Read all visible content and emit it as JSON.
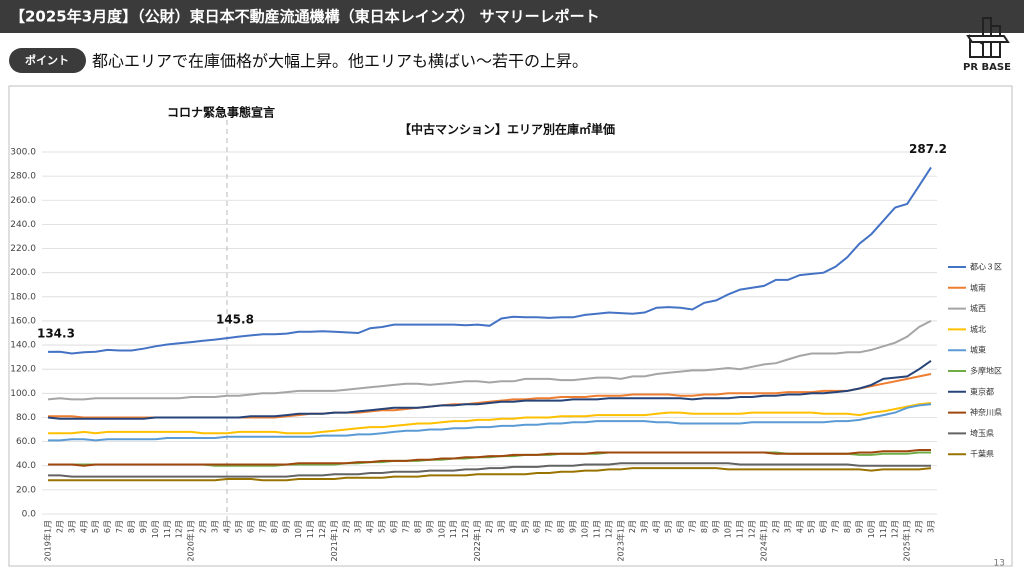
{
  "header": {
    "title": "【2025年3月度】（公財）東日本不動産流通機構（東日本レインズ） サマリーレポート",
    "logo": "PR BASE"
  },
  "point": {
    "badge": "ポイント",
    "text": "都心エリアで在庫価格が大幅上昇。他エリアも横ばい～若干の上昇。"
  },
  "page_number": "13",
  "chart_data": {
    "type": "line",
    "title": "【中古マンション】エリア別在庫㎡単価",
    "event": {
      "label": "コロナ緊急事態宣言",
      "x_index": 15
    },
    "labeled_points": [
      0,
      15,
      74
    ],
    "categories": [
      "2019年1月",
      "2月",
      "3月",
      "4月",
      "5月",
      "6月",
      "7月",
      "8月",
      "9月",
      "10月",
      "11月",
      "12月",
      "2020年1月",
      "2月",
      "3月",
      "4月",
      "5月",
      "6月",
      "7月",
      "8月",
      "9月",
      "10月",
      "11月",
      "12月",
      "2021年1月",
      "2月",
      "3月",
      "4月",
      "5月",
      "6月",
      "7月",
      "8月",
      "9月",
      "10月",
      "11月",
      "12月",
      "2022年1月",
      "2月",
      "3月",
      "4月",
      "5月",
      "6月",
      "7月",
      "8月",
      "9月",
      "10月",
      "11月",
      "12月",
      "2023年1月",
      "2月",
      "3月",
      "4月",
      "5月",
      "6月",
      "7月",
      "8月",
      "9月",
      "10月",
      "11月",
      "12月",
      "2024年1月",
      "2月",
      "3月",
      "4月",
      "5月",
      "6月",
      "7月",
      "8月",
      "9月",
      "10月",
      "11月",
      "12月",
      "2025年1月",
      "2月",
      "3月"
    ],
    "ylim": [
      0,
      300
    ],
    "yticks": [
      {
        "value": 0,
        "label": "0.0"
      },
      {
        "value": 20,
        "label": "20.0"
      },
      {
        "value": 40,
        "label": "40.0"
      },
      {
        "value": 60,
        "label": "60.0"
      },
      {
        "value": 80,
        "label": "80.0"
      },
      {
        "value": 100,
        "label": "100.0"
      },
      {
        "value": 120,
        "label": "120.0"
      },
      {
        "value": 140,
        "label": "140.0"
      },
      {
        "value": 160,
        "label": "160.0"
      },
      {
        "value": 180,
        "label": "180.0"
      },
      {
        "value": 200,
        "label": "200.0"
      },
      {
        "value": 220,
        "label": "220.0"
      },
      {
        "value": 240,
        "label": "240.0"
      },
      {
        "value": 260,
        "label": "260.0"
      },
      {
        "value": 280,
        "label": "280.0"
      },
      {
        "value": 300,
        "label": "300.0"
      }
    ],
    "grid": true,
    "legend": "right",
    "series": [
      {
        "name": "都心３区",
        "color": "#4472c4",
        "values": [
          134.3,
          134.5,
          133,
          134,
          134.5,
          136,
          135.5,
          135.5,
          137,
          139,
          140.5,
          141.5,
          142.5,
          143.5,
          144.5,
          145.8,
          147,
          148,
          149,
          149,
          149.5,
          151,
          151,
          151.5,
          151,
          150.5,
          150,
          154,
          155,
          157,
          157,
          157,
          157,
          157,
          157,
          156.5,
          157,
          156,
          162,
          163.5,
          163,
          163,
          162.5,
          163,
          163,
          165,
          166,
          167,
          166.5,
          166,
          167,
          171,
          171.5,
          171,
          169.5,
          175,
          177,
          182,
          186,
          187.5,
          189,
          194,
          194,
          198,
          199,
          200,
          205,
          213,
          224,
          232,
          243,
          254,
          257,
          272,
          287.2
        ]
      },
      {
        "name": "城南",
        "color": "#ed7d31",
        "values": [
          81,
          81,
          81,
          80,
          80,
          80,
          80,
          80,
          80,
          80,
          80,
          80,
          80,
          80,
          80,
          80,
          80,
          80,
          80,
          80,
          81,
          82,
          83,
          83,
          84,
          84,
          84,
          85,
          86,
          86,
          87,
          88,
          89,
          90,
          91,
          91,
          92,
          93,
          94,
          95,
          95,
          96,
          96,
          97,
          97,
          97,
          98,
          98,
          98,
          99,
          99,
          99,
          99,
          98,
          98,
          99,
          99,
          100,
          100,
          100,
          100,
          100,
          101,
          101,
          101,
          102,
          102,
          102,
          104,
          106,
          108,
          110,
          112,
          114,
          116
        ]
      },
      {
        "name": "城西",
        "color": "#a5a5a5",
        "values": [
          95,
          96,
          95,
          95,
          96,
          96,
          96,
          96,
          96,
          96,
          96,
          96,
          97,
          97,
          97,
          98,
          98,
          99,
          100,
          100,
          101,
          102,
          102,
          102,
          102,
          103,
          104,
          105,
          106,
          107,
          108,
          108,
          107,
          108,
          109,
          110,
          110,
          109,
          110,
          110,
          112,
          112,
          112,
          111,
          111,
          112,
          113,
          113,
          112,
          114,
          114,
          116,
          117,
          118,
          119,
          119,
          120,
          121,
          120,
          122,
          124,
          125,
          128,
          131,
          133,
          133,
          133,
          134,
          134,
          136,
          139,
          142,
          147,
          155,
          160
        ]
      },
      {
        "name": "城北",
        "color": "#ffc000",
        "values": [
          67,
          67,
          67,
          68,
          67,
          68,
          68,
          68,
          68,
          68,
          68,
          68,
          68,
          67,
          67,
          67,
          68,
          68,
          68,
          68,
          67,
          67,
          67,
          68,
          69,
          70,
          71,
          72,
          72,
          73,
          74,
          75,
          75,
          76,
          77,
          77,
          78,
          78,
          79,
          79,
          80,
          80,
          80,
          81,
          81,
          81,
          82,
          82,
          82,
          82,
          82,
          83,
          84,
          84,
          83,
          83,
          83,
          83,
          83,
          84,
          84,
          84,
          84,
          84,
          84,
          83,
          83,
          83,
          82,
          84,
          85,
          87,
          89,
          91,
          92
        ]
      },
      {
        "name": "城東",
        "color": "#5b9bd5",
        "values": [
          61,
          61,
          62,
          62,
          61,
          62,
          62,
          62,
          62,
          62,
          63,
          63,
          63,
          63,
          63,
          64,
          64,
          64,
          64,
          64,
          64,
          64,
          64,
          65,
          65,
          65,
          66,
          66,
          67,
          68,
          69,
          69,
          70,
          70,
          71,
          71,
          72,
          72,
          73,
          73,
          74,
          74,
          75,
          75,
          76,
          76,
          77,
          77,
          77,
          77,
          77,
          76,
          76,
          75,
          75,
          75,
          75,
          75,
          75,
          76,
          76,
          76,
          76,
          76,
          76,
          76,
          77,
          77,
          78,
          80,
          82,
          84,
          88,
          90,
          91
        ]
      },
      {
        "name": "多摩地区",
        "color": "#70ad47",
        "values": [
          41,
          41,
          41,
          41,
          41,
          41,
          41,
          41,
          41,
          41,
          41,
          41,
          41,
          41,
          40,
          40,
          40,
          40,
          40,
          40,
          41,
          41,
          41,
          41,
          41,
          42,
          42,
          43,
          43,
          44,
          44,
          44,
          45,
          45,
          46,
          46,
          47,
          47,
          48,
          48,
          49,
          49,
          49,
          50,
          50,
          50,
          50,
          51,
          51,
          51,
          51,
          51,
          51,
          51,
          51,
          51,
          51,
          51,
          51,
          51,
          51,
          51,
          50,
          50,
          50,
          50,
          50,
          50,
          49,
          49,
          50,
          50,
          50,
          51,
          51
        ]
      },
      {
        "name": "東京都",
        "color": "#264478",
        "values": [
          80,
          79,
          79,
          79,
          79,
          79,
          79,
          79,
          79,
          80,
          80,
          80,
          80,
          80,
          80,
          80,
          80,
          81,
          81,
          81,
          82,
          83,
          83,
          83,
          84,
          84,
          85,
          86,
          87,
          88,
          88,
          88,
          89,
          90,
          90,
          91,
          91,
          92,
          93,
          93,
          94,
          94,
          94,
          94,
          95,
          95,
          95,
          96,
          96,
          96,
          96,
          96,
          96,
          96,
          95,
          96,
          96,
          96,
          97,
          97,
          98,
          98,
          99,
          99,
          100,
          100,
          101,
          102,
          104,
          107,
          112,
          113,
          114,
          120,
          127
        ]
      },
      {
        "name": "神奈川県",
        "color": "#9e480e",
        "values": [
          41,
          41,
          41,
          40,
          41,
          41,
          41,
          41,
          41,
          41,
          41,
          41,
          41,
          41,
          41,
          41,
          41,
          41,
          41,
          41,
          41,
          42,
          42,
          42,
          42,
          42,
          43,
          43,
          44,
          44,
          44,
          45,
          45,
          46,
          46,
          47,
          47,
          48,
          48,
          49,
          49,
          49,
          50,
          50,
          50,
          50,
          51,
          51,
          51,
          51,
          51,
          51,
          51,
          51,
          51,
          51,
          51,
          51,
          51,
          51,
          51,
          50,
          50,
          50,
          50,
          50,
          50,
          50,
          51,
          51,
          52,
          52,
          52,
          53,
          53
        ]
      },
      {
        "name": "埼玉県",
        "color": "#636363",
        "values": [
          32,
          32,
          31,
          31,
          31,
          31,
          31,
          31,
          31,
          31,
          31,
          31,
          31,
          31,
          31,
          31,
          31,
          31,
          31,
          31,
          31,
          32,
          32,
          32,
          33,
          33,
          33,
          34,
          34,
          35,
          35,
          35,
          36,
          36,
          36,
          37,
          37,
          38,
          38,
          39,
          39,
          39,
          40,
          40,
          40,
          41,
          41,
          41,
          42,
          42,
          42,
          42,
          42,
          42,
          42,
          42,
          42,
          42,
          41,
          41,
          41,
          41,
          41,
          41,
          41,
          41,
          41,
          41,
          40,
          40,
          40,
          40,
          40,
          40,
          40
        ]
      },
      {
        "name": "千葉県",
        "color": "#997300",
        "values": [
          28,
          28,
          28,
          28,
          28,
          28,
          28,
          28,
          28,
          28,
          28,
          28,
          28,
          28,
          28,
          29,
          29,
          29,
          28,
          28,
          28,
          29,
          29,
          29,
          29,
          30,
          30,
          30,
          30,
          31,
          31,
          31,
          32,
          32,
          32,
          32,
          33,
          33,
          33,
          33,
          33,
          34,
          34,
          35,
          35,
          36,
          36,
          37,
          37,
          38,
          38,
          38,
          38,
          38,
          38,
          38,
          38,
          37,
          37,
          37,
          37,
          37,
          37,
          37,
          37,
          37,
          37,
          37,
          37,
          36,
          37,
          37,
          37,
          37,
          38
        ]
      }
    ]
  }
}
